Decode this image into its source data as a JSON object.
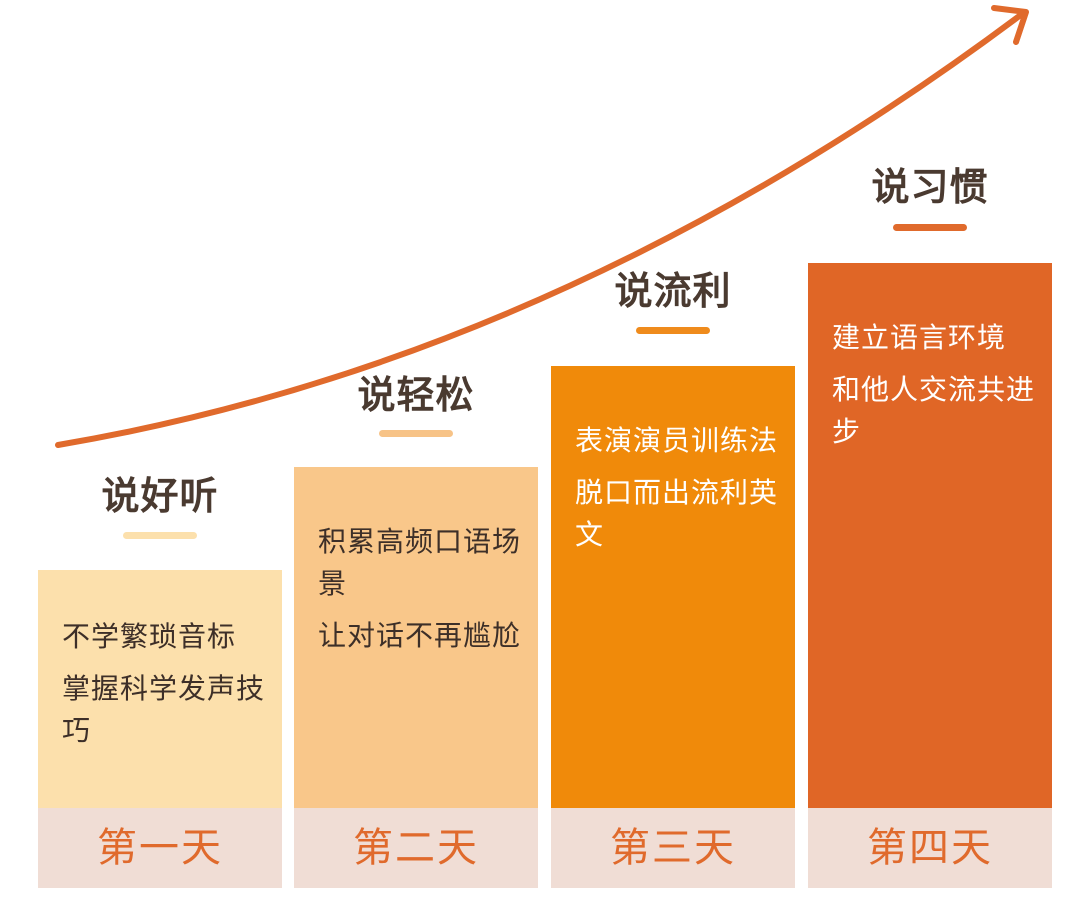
{
  "stages": [
    {
      "title": "说好听",
      "lines": [
        "不学繁琐音标",
        "掌握科学发声技巧"
      ],
      "day": "第一天",
      "color": "#fce0ac",
      "underline_color": "#fce0ac"
    },
    {
      "title": "说轻松",
      "lines": [
        "积累高频口语场景",
        "让对话不再尴尬"
      ],
      "day": "第二天",
      "color": "#f9c78a",
      "underline_color": "#f7c387"
    },
    {
      "title": "说流利",
      "lines": [
        "表演演员训练法",
        "脱口而出流利英文"
      ],
      "day": "第三天",
      "color": "#f08a0a",
      "underline_color": "#ef8b1c"
    },
    {
      "title": "说习惯",
      "lines": [
        "建立语言环境",
        "和他人交流共进步"
      ],
      "day": "第四天",
      "color": "#e06626",
      "underline_color": "#e06a2c"
    }
  ],
  "arrow_color": "#e06a2c"
}
